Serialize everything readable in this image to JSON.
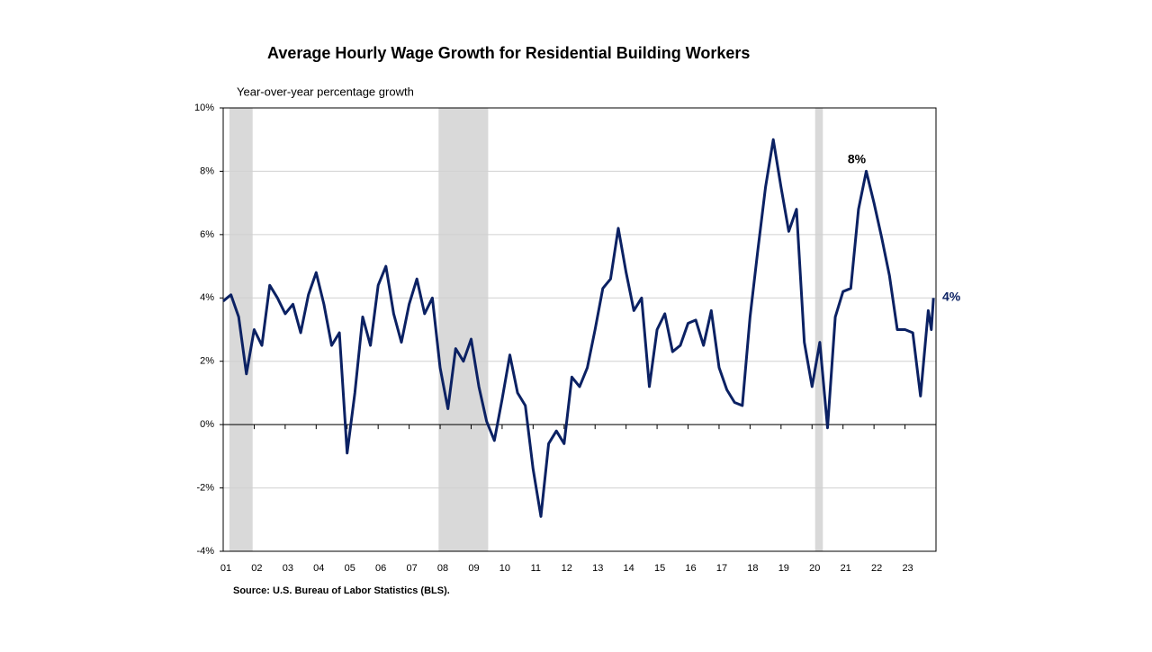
{
  "chart_data": {
    "type": "line",
    "title": "Average Hourly Wage Growth for Residential Building Workers",
    "y_axis_label": "Year-over-year percentage growth",
    "source": "Source: U.S. Bureau of Labor Statistics (BLS).",
    "annotations": [
      "8%",
      "4%"
    ],
    "xlim": [
      1,
      24
    ],
    "ylim": [
      -4,
      10
    ],
    "yticks": [
      {
        "value": -4,
        "label": "-4%"
      },
      {
        "value": -2,
        "label": "-2%"
      },
      {
        "value": 0,
        "label": "0%"
      },
      {
        "value": 2,
        "label": "2%"
      },
      {
        "value": 4,
        "label": "4%"
      },
      {
        "value": 6,
        "label": "6%"
      },
      {
        "value": 8,
        "label": "8%"
      },
      {
        "value": 10,
        "label": "10%"
      }
    ],
    "xticks": [
      {
        "value": 1,
        "label": "01"
      },
      {
        "value": 2,
        "label": "02"
      },
      {
        "value": 3,
        "label": "03"
      },
      {
        "value": 4,
        "label": "04"
      },
      {
        "value": 5,
        "label": "05"
      },
      {
        "value": 6,
        "label": "06"
      },
      {
        "value": 7,
        "label": "07"
      },
      {
        "value": 8,
        "label": "08"
      },
      {
        "value": 9,
        "label": "09"
      },
      {
        "value": 10,
        "label": "10"
      },
      {
        "value": 11,
        "label": "11"
      },
      {
        "value": 12,
        "label": "12"
      },
      {
        "value": 13,
        "label": "13"
      },
      {
        "value": 14,
        "label": "14"
      },
      {
        "value": 15,
        "label": "15"
      },
      {
        "value": 16,
        "label": "16"
      },
      {
        "value": 17,
        "label": "17"
      },
      {
        "value": 18,
        "label": "18"
      },
      {
        "value": 19,
        "label": "19"
      },
      {
        "value": 20,
        "label": "20"
      },
      {
        "value": 21,
        "label": "21"
      },
      {
        "value": 22,
        "label": "22"
      },
      {
        "value": 23,
        "label": "23"
      }
    ],
    "grid": true,
    "shaded_periods": [
      [
        1.2,
        1.95
      ],
      [
        7.95,
        9.55
      ],
      [
        20.1,
        20.35
      ]
    ],
    "shade_color": "#d9d9d9",
    "x": [
      1,
      1.25,
      1.5,
      1.75,
      2,
      2.25,
      2.5,
      2.75,
      3,
      3.25,
      3.5,
      3.75,
      4,
      4.25,
      4.5,
      4.75,
      5,
      5.25,
      5.5,
      5.75,
      6,
      6.25,
      6.5,
      6.75,
      7,
      7.25,
      7.5,
      7.75,
      8,
      8.25,
      8.5,
      8.75,
      9,
      9.25,
      9.5,
      9.75,
      10,
      10.25,
      10.5,
      10.75,
      11,
      11.25,
      11.5,
      11.75,
      12,
      12.25,
      12.5,
      12.75,
      13,
      13.25,
      13.5,
      13.75,
      14,
      14.25,
      14.5,
      14.75,
      15,
      15.25,
      15.5,
      15.75,
      16,
      16.25,
      16.5,
      16.75,
      17,
      17.25,
      17.5,
      17.75,
      18,
      18.25,
      18.5,
      18.75,
      19,
      19.25,
      19.5,
      19.75,
      20,
      20.25,
      20.5,
      20.75,
      21,
      21.25,
      21.5,
      21.75,
      22,
      22.25,
      22.5,
      22.75,
      23,
      23.25,
      23.5,
      23.75,
      23.85,
      23.92
    ],
    "series": [
      {
        "name": "Average hourly wage growth",
        "color": "#0b2163",
        "values": [
          3.9,
          4.1,
          3.4,
          1.6,
          3.0,
          2.5,
          4.4,
          4.0,
          3.5,
          3.8,
          2.9,
          4.1,
          4.8,
          3.8,
          2.5,
          2.9,
          -0.9,
          1.0,
          3.4,
          2.5,
          4.4,
          5.0,
          3.5,
          2.6,
          3.8,
          4.6,
          3.5,
          4.0,
          1.8,
          0.5,
          2.4,
          2.0,
          2.7,
          1.2,
          0.1,
          -0.5,
          0.8,
          2.2,
          1.0,
          0.6,
          -1.4,
          -2.9,
          -0.6,
          -0.2,
          -0.6,
          1.5,
          1.2,
          1.8,
          3.0,
          4.3,
          4.6,
          6.2,
          4.8,
          3.6,
          4.0,
          1.2,
          3.0,
          3.5,
          2.3,
          2.5,
          3.2,
          3.3,
          2.5,
          3.6,
          1.8,
          1.1,
          0.7,
          0.6,
          3.4,
          5.5,
          7.5,
          9.0,
          7.5,
          6.1,
          6.8,
          2.6,
          1.2,
          2.6,
          -0.1,
          3.4,
          4.2,
          4.3,
          6.8,
          8.0,
          7.0,
          5.9,
          4.7,
          3.0,
          3.0,
          2.9,
          0.9,
          3.6,
          3.0,
          4.0
        ]
      }
    ]
  }
}
